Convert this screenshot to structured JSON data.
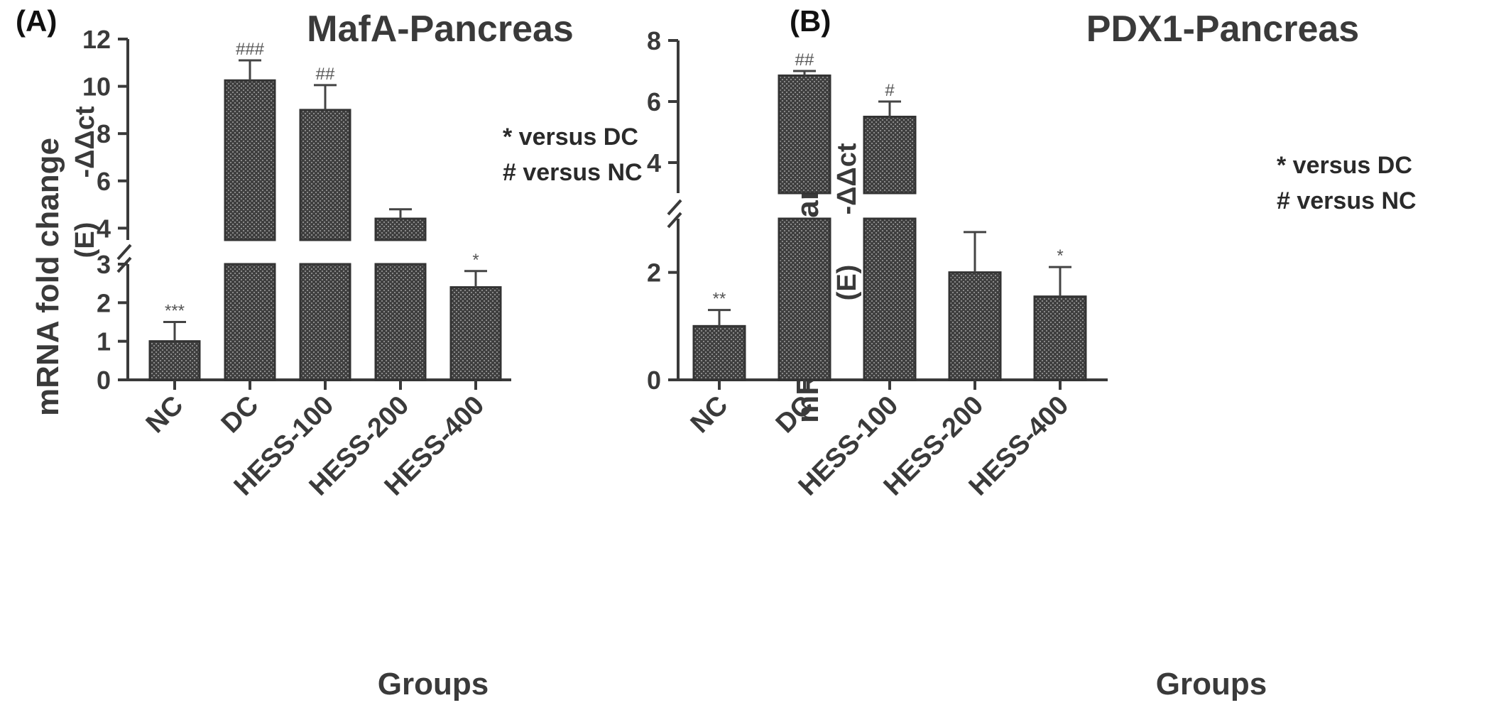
{
  "figure": {
    "legend_lines": [
      "* versus DC",
      "# versus NC"
    ]
  },
  "chart_data": [
    {
      "type": "bar",
      "panel": "(A)",
      "title": "MafA-Pancreas",
      "xlabel": "Groups",
      "ylabel": "mRNA fold change",
      "ylabel_sub": "(E)",
      "ylabel_sup": "-ΔΔct",
      "categories": [
        "NC",
        "DC",
        "HESS-100",
        "HESS-200",
        "HESS-400"
      ],
      "values": [
        1.0,
        10.25,
        9.0,
        4.4,
        2.4
      ],
      "errors": [
        0.5,
        0.85,
        1.05,
        0.4,
        0.42
      ],
      "significance": [
        "***",
        "###",
        "##",
        "",
        "*"
      ],
      "y_axis_break": true,
      "ylim_lower": [
        0,
        3
      ],
      "ylim_upper": [
        3.5,
        12
      ],
      "yticks_lower": [
        0,
        1,
        2,
        3
      ],
      "yticks_upper": [
        4,
        6,
        8,
        10,
        12
      ],
      "grid": false
    },
    {
      "type": "bar",
      "panel": "(B)",
      "title": "PDX1-Pancreas",
      "xlabel": "Groups",
      "ylabel": "mRNA fold change",
      "ylabel_sub": "(E)",
      "ylabel_sup": "-ΔΔct",
      "categories": [
        "NC",
        "DC",
        "HESS-100",
        "HESS-200",
        "HESS-400"
      ],
      "values": [
        1.0,
        6.85,
        5.5,
        2.0,
        1.55
      ],
      "errors": [
        0.3,
        0.15,
        0.5,
        0.75,
        0.55
      ],
      "significance": [
        "**",
        "##",
        "#",
        "",
        "*"
      ],
      "y_axis_break": true,
      "ylim_lower": [
        0,
        3
      ],
      "ylim_upper": [
        3,
        8
      ],
      "yticks_lower": [
        0,
        2
      ],
      "yticks_upper": [
        4,
        6,
        8
      ],
      "grid": false
    }
  ]
}
